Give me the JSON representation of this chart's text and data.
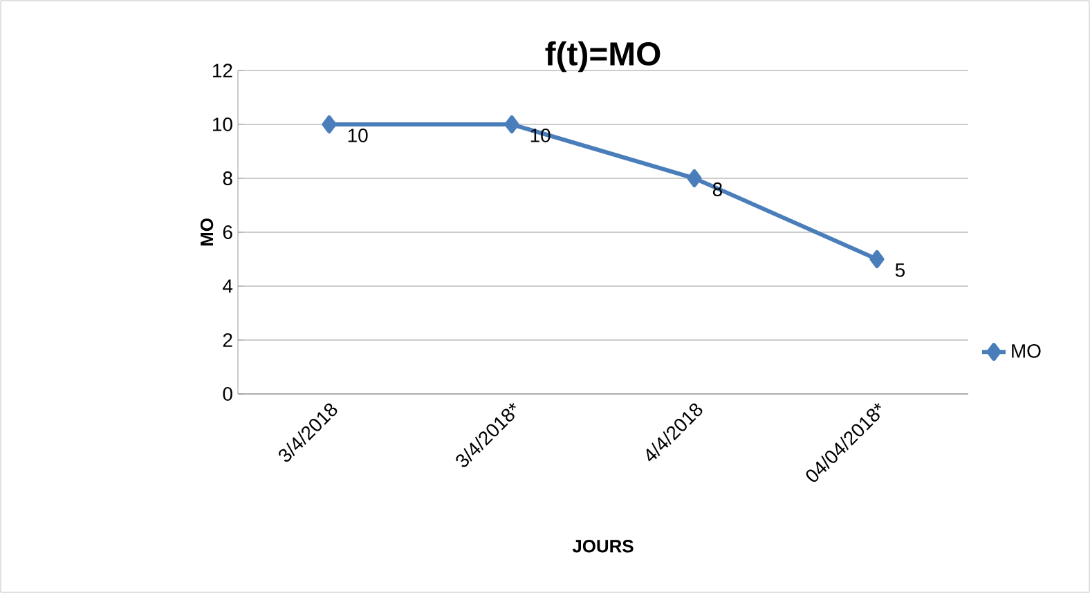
{
  "chart_data": {
    "type": "line",
    "title": "f(t)=MO",
    "xlabel": "JOURS",
    "ylabel": "MO",
    "categories": [
      "3/4/2018",
      "3/4/2018*",
      "4/4/2018",
      "04/04/2018*"
    ],
    "series": [
      {
        "name": "MO",
        "color": "#4a7ebb",
        "values": [
          10,
          10,
          8,
          5
        ]
      }
    ],
    "ylim": [
      0,
      12
    ],
    "yticks": [
      0,
      2,
      4,
      6,
      8,
      10,
      12
    ],
    "grid": "y",
    "legend": "right",
    "marker": "diamond",
    "line_style": "solid",
    "data_labels": true
  }
}
